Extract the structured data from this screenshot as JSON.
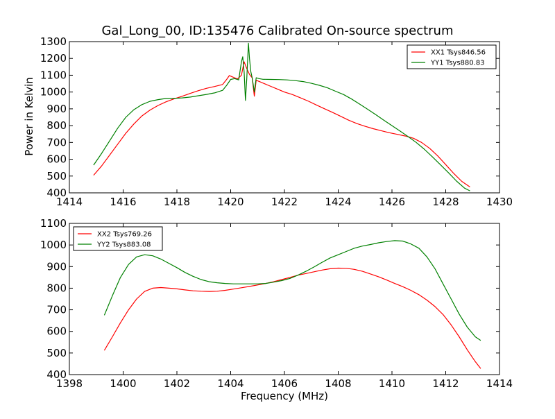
{
  "chart_data": [
    {
      "type": "line",
      "title": "Gal_Long_00, ID:135476 Calibrated On-source spectrum",
      "xlabel": "",
      "ylabel": "Power in Kelvin",
      "xlim": [
        1414,
        1430
      ],
      "ylim": [
        400,
        1300
      ],
      "xticks": [
        1414,
        1416,
        1418,
        1420,
        1422,
        1424,
        1426,
        1428,
        1430
      ],
      "yticks": [
        400,
        500,
        600,
        700,
        800,
        900,
        1000,
        1100,
        1200,
        1300
      ],
      "grid": false,
      "legend": "top-right",
      "series": [
        {
          "name": "XX1 Tsys846.56",
          "color": "#ff0000",
          "x": [
            1414.9,
            1415.2,
            1415.5,
            1415.8,
            1416.1,
            1416.4,
            1416.7,
            1417.0,
            1417.3,
            1417.6,
            1417.9,
            1418.2,
            1418.5,
            1418.8,
            1419.1,
            1419.4,
            1419.7,
            1419.85,
            1419.95,
            1420.1,
            1420.25,
            1420.4,
            1420.5,
            1420.6,
            1420.7,
            1420.75,
            1420.8,
            1420.88,
            1420.95,
            1421.1,
            1421.4,
            1421.7,
            1422.0,
            1422.3,
            1422.6,
            1422.9,
            1423.2,
            1423.5,
            1423.8,
            1424.1,
            1424.4,
            1424.7,
            1425.0,
            1425.3,
            1425.6,
            1425.9,
            1426.2,
            1426.5,
            1426.8,
            1427.1,
            1427.4,
            1427.7,
            1428.0,
            1428.3,
            1428.6,
            1428.9
          ],
          "y": [
            505,
            560,
            625,
            690,
            755,
            810,
            858,
            893,
            920,
            942,
            960,
            975,
            992,
            1008,
            1022,
            1033,
            1045,
            1075,
            1098,
            1088,
            1078,
            1100,
            1180,
            1140,
            1105,
            1095,
            1085,
            975,
            1070,
            1060,
            1040,
            1020,
            1000,
            985,
            965,
            945,
            922,
            900,
            878,
            855,
            832,
            812,
            796,
            782,
            770,
            758,
            748,
            738,
            725,
            700,
            665,
            620,
            568,
            515,
            468,
            435
          ]
        },
        {
          "name": "YY1 Tsys880.83",
          "color": "#008000",
          "x": [
            1414.9,
            1415.2,
            1415.5,
            1415.8,
            1416.1,
            1416.4,
            1416.7,
            1417.0,
            1417.3,
            1417.6,
            1417.9,
            1418.2,
            1418.5,
            1418.8,
            1419.1,
            1419.4,
            1419.7,
            1419.85,
            1420.0,
            1420.15,
            1420.3,
            1420.4,
            1420.45,
            1420.5,
            1420.55,
            1420.6,
            1420.66,
            1420.7,
            1420.75,
            1420.8,
            1420.88,
            1420.95,
            1421.05,
            1421.2,
            1421.5,
            1421.8,
            1422.1,
            1422.4,
            1422.7,
            1423.0,
            1423.3,
            1423.6,
            1423.9,
            1424.2,
            1424.5,
            1424.8,
            1425.1,
            1425.4,
            1425.7,
            1426.0,
            1426.3,
            1426.6,
            1426.9,
            1427.2,
            1427.5,
            1427.8,
            1428.1,
            1428.4,
            1428.7,
            1428.9
          ],
          "y": [
            565,
            635,
            710,
            785,
            850,
            895,
            925,
            945,
            955,
            962,
            962,
            965,
            970,
            978,
            986,
            995,
            1010,
            1040,
            1075,
            1080,
            1072,
            1180,
            1210,
            1120,
            950,
            1080,
            1290,
            1200,
            1120,
            1085,
            1000,
            1085,
            1080,
            1076,
            1075,
            1074,
            1072,
            1068,
            1062,
            1052,
            1040,
            1025,
            1005,
            985,
            958,
            928,
            897,
            865,
            832,
            800,
            768,
            735,
            700,
            660,
            615,
            568,
            520,
            470,
            428,
            412
          ]
        }
      ]
    },
    {
      "type": "line",
      "title": "",
      "xlabel": "Frequency (MHz)",
      "ylabel": "",
      "xlim": [
        1398,
        1414
      ],
      "ylim": [
        400,
        1100
      ],
      "xticks": [
        1398,
        1400,
        1402,
        1404,
        1406,
        1408,
        1410,
        1412,
        1414
      ],
      "yticks": [
        400,
        500,
        600,
        700,
        800,
        900,
        1000,
        1100
      ],
      "grid": false,
      "legend": "top-left",
      "series": [
        {
          "name": "XX2 Tsys769.26",
          "color": "#ff0000",
          "x": [
            1399.3,
            1399.6,
            1399.9,
            1400.2,
            1400.5,
            1400.8,
            1401.1,
            1401.4,
            1401.7,
            1402.0,
            1402.3,
            1402.6,
            1402.9,
            1403.2,
            1403.5,
            1403.8,
            1404.1,
            1404.4,
            1404.7,
            1405.0,
            1405.3,
            1405.6,
            1405.9,
            1406.2,
            1406.5,
            1406.8,
            1407.1,
            1407.4,
            1407.7,
            1408.0,
            1408.3,
            1408.6,
            1408.9,
            1409.2,
            1409.5,
            1409.8,
            1410.1,
            1410.4,
            1410.7,
            1411.0,
            1411.3,
            1411.6,
            1411.9,
            1412.2,
            1412.5,
            1412.8,
            1413.1,
            1413.3
          ],
          "y": [
            512,
            575,
            640,
            700,
            750,
            785,
            800,
            803,
            800,
            797,
            792,
            788,
            786,
            785,
            786,
            790,
            796,
            802,
            808,
            815,
            822,
            830,
            840,
            850,
            860,
            868,
            876,
            884,
            890,
            893,
            892,
            887,
            878,
            866,
            853,
            838,
            822,
            807,
            790,
            770,
            745,
            715,
            678,
            630,
            575,
            515,
            460,
            428
          ]
        },
        {
          "name": "YY2 Tsys883.08",
          "color": "#008000",
          "x": [
            1399.3,
            1399.6,
            1399.9,
            1400.2,
            1400.5,
            1400.8,
            1401.1,
            1401.4,
            1401.7,
            1402.0,
            1402.3,
            1402.6,
            1402.9,
            1403.2,
            1403.5,
            1403.8,
            1404.1,
            1404.4,
            1404.7,
            1405.0,
            1405.3,
            1405.6,
            1405.9,
            1406.2,
            1406.5,
            1406.8,
            1407.1,
            1407.4,
            1407.7,
            1408.0,
            1408.3,
            1408.6,
            1408.9,
            1409.2,
            1409.5,
            1409.8,
            1410.1,
            1410.4,
            1410.7,
            1411.0,
            1411.3,
            1411.6,
            1411.9,
            1412.2,
            1412.5,
            1412.8,
            1413.1,
            1413.3
          ],
          "y": [
            675,
            765,
            850,
            910,
            945,
            955,
            950,
            935,
            915,
            895,
            873,
            855,
            840,
            830,
            825,
            822,
            820,
            820,
            820,
            820,
            822,
            828,
            835,
            845,
            860,
            878,
            898,
            920,
            940,
            955,
            970,
            985,
            995,
            1002,
            1010,
            1016,
            1020,
            1018,
            1005,
            985,
            945,
            890,
            820,
            750,
            680,
            620,
            575,
            558
          ]
        }
      ]
    }
  ]
}
